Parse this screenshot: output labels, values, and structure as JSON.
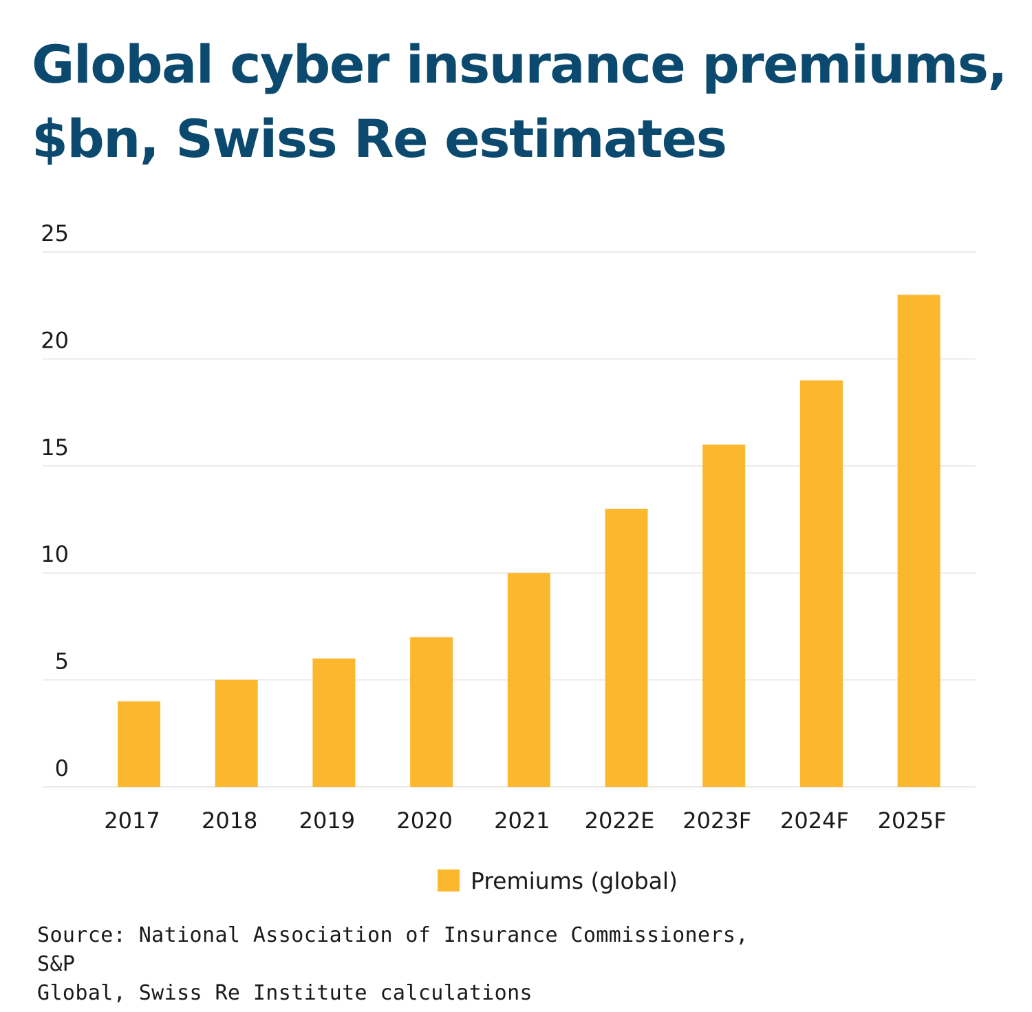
{
  "chart_data": {
    "type": "bar",
    "title_line1": "Global cyber insurance premiums,",
    "title_line2": "$bn, Swiss Re estimates",
    "categories": [
      "2017",
      "2018",
      "2019",
      "2020",
      "2021",
      "2022E",
      "2023F",
      "2024F",
      "2025F"
    ],
    "series": [
      {
        "name": "Premiums (global)",
        "values": [
          4,
          5,
          6,
          7,
          10,
          13,
          16,
          19,
          23
        ],
        "color": "#fbb72e"
      }
    ],
    "ylim": [
      0,
      25
    ],
    "yticks": [
      "0",
      "5",
      "10",
      "15",
      "20",
      "25"
    ],
    "grid": true,
    "legend_position": "bottom-center",
    "source": "Source: National Association of Insurance Commissioners, S&P",
    "source_line2": "Global, Swiss Re Institute calculations"
  },
  "colors": {
    "title": "#0b4a6e",
    "bar": "#fbb72e",
    "grid": "#e3e3e3",
    "text": "#1a1a1a"
  }
}
